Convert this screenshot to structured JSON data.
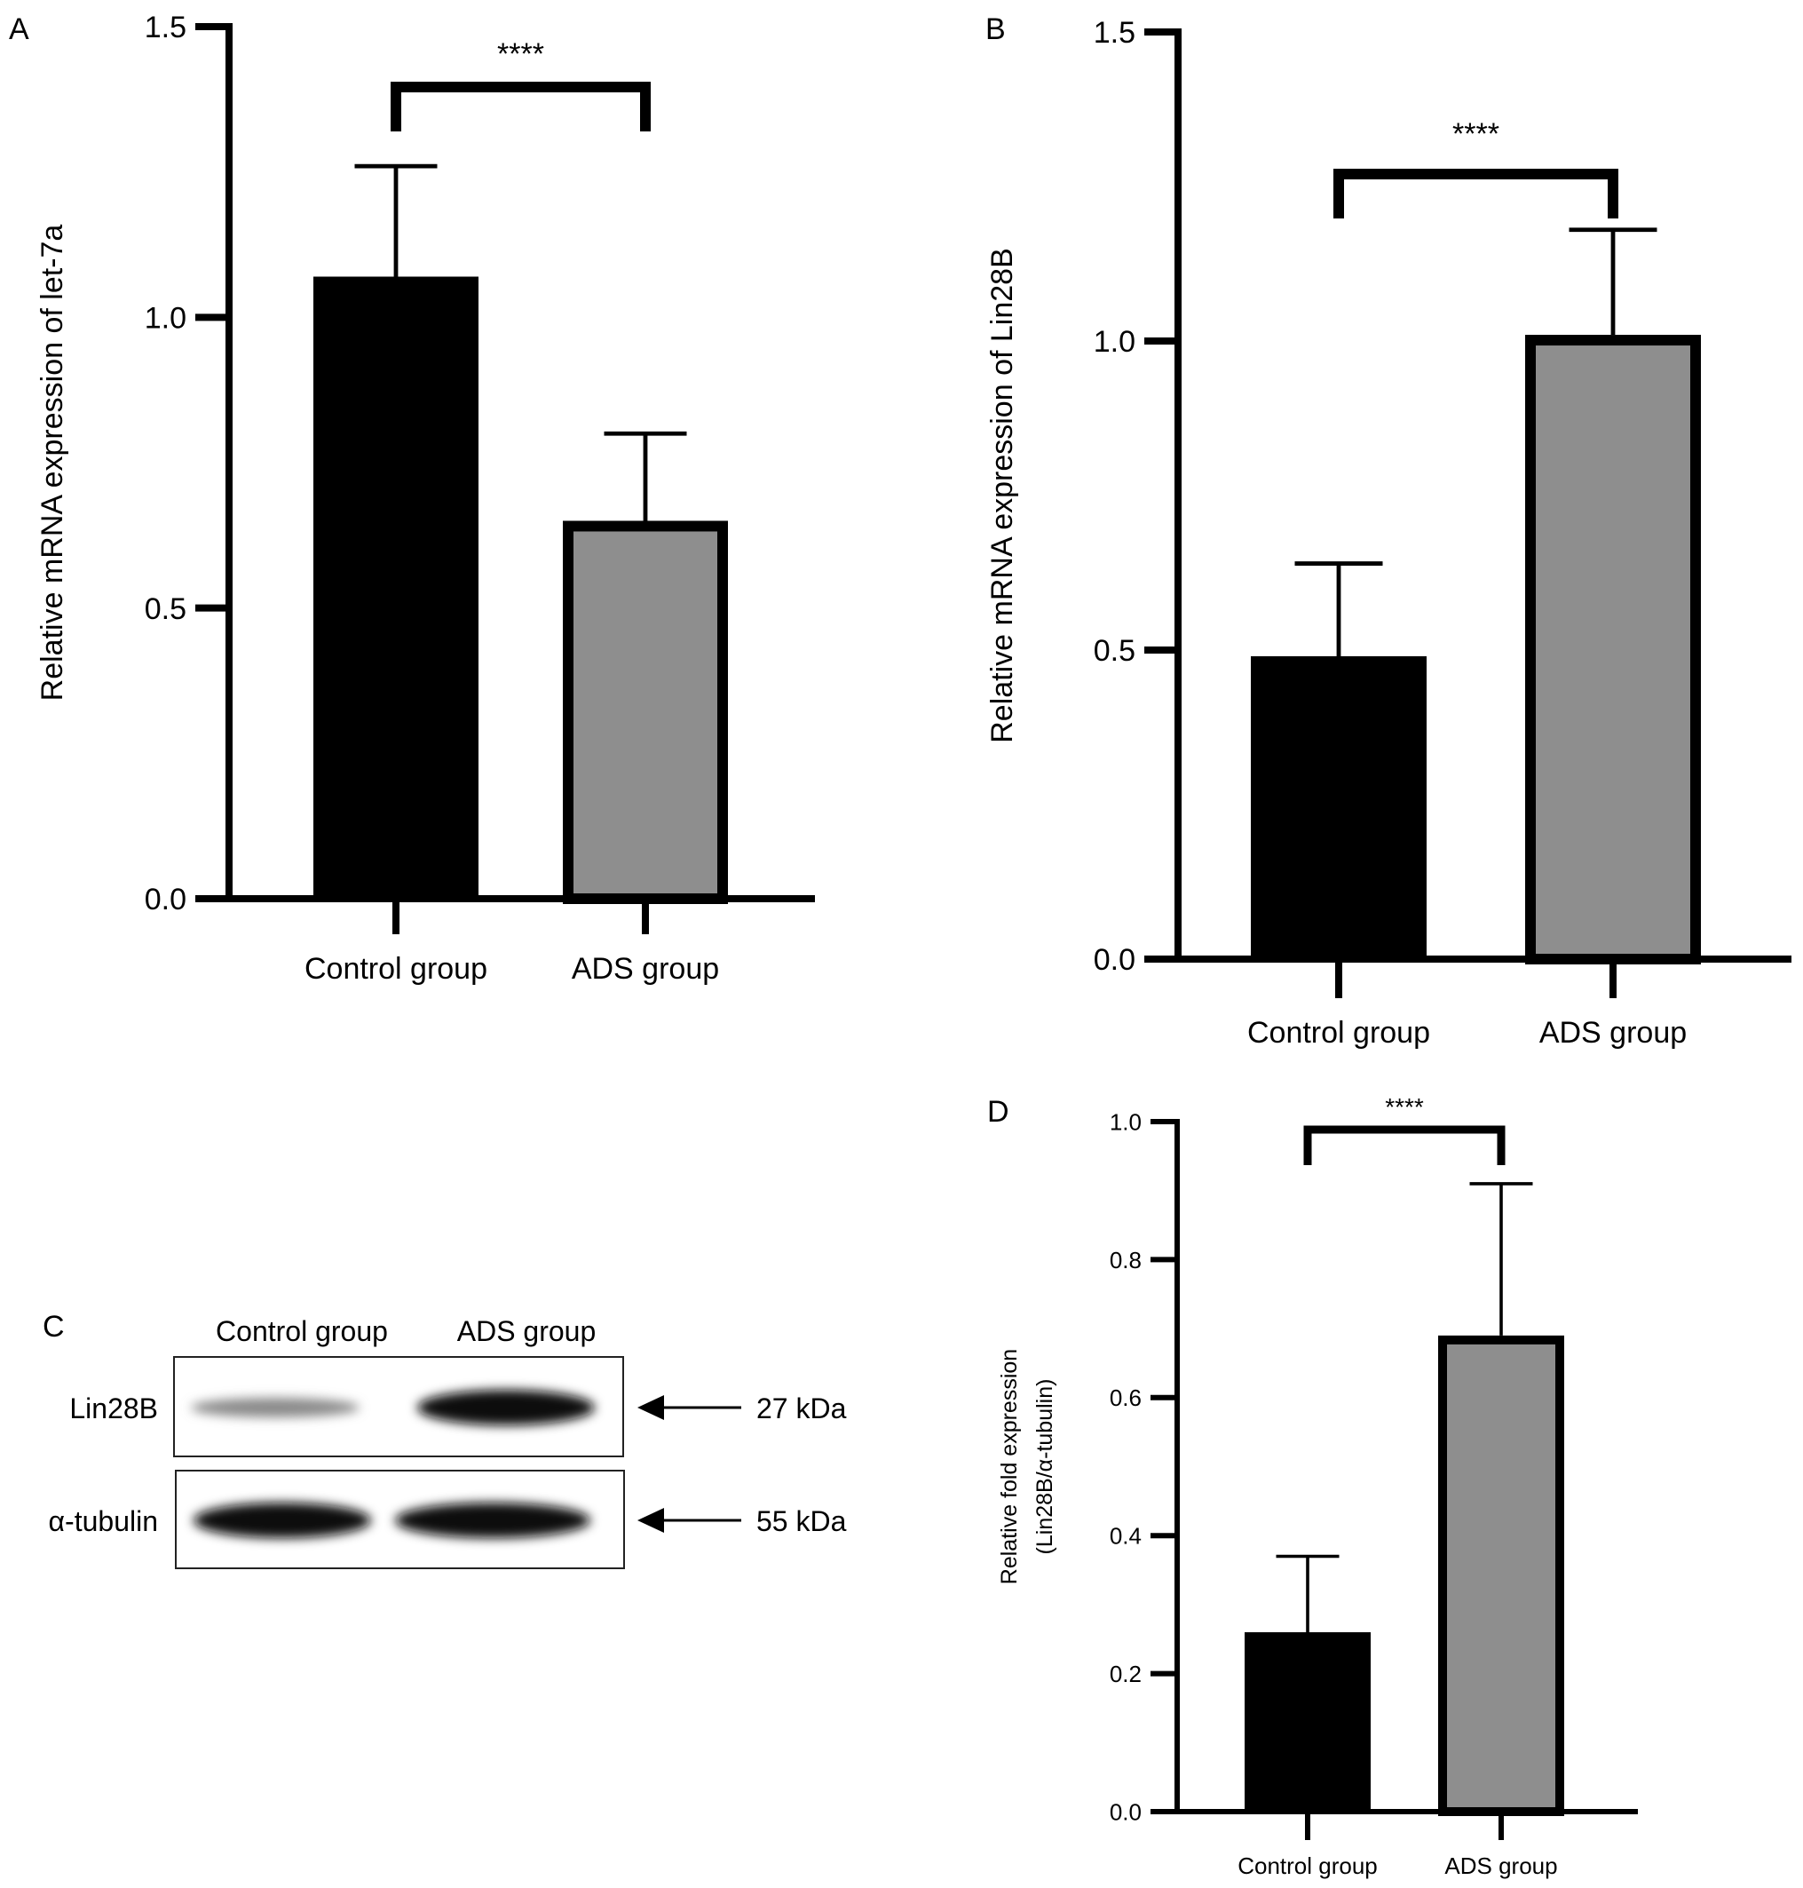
{
  "chart_data": [
    {
      "panel": "A",
      "type": "bar",
      "categories": [
        "Control group",
        "ADS group"
      ],
      "values": [
        1.07,
        0.65
      ],
      "errors": [
        0.19,
        0.15
      ],
      "ylabel": "Relative mRNA expression of let-7a",
      "ylim": [
        0,
        1.5
      ],
      "yticks": [
        "0.0",
        "0.5",
        "1.0",
        "1.5"
      ],
      "significance": "****",
      "colors": [
        "#000000",
        "#8e8e8e"
      ]
    },
    {
      "panel": "B",
      "type": "bar",
      "categories": [
        "Control group",
        "ADS group"
      ],
      "values": [
        0.49,
        1.01
      ],
      "errors": [
        0.15,
        0.17
      ],
      "ylabel": "Relative mRNA expression of  Lin28B",
      "ylim": [
        0,
        1.5
      ],
      "yticks": [
        "0.0",
        "0.5",
        "1.0",
        "1.5"
      ],
      "significance": "****",
      "colors": [
        "#000000",
        "#8e8e8e"
      ]
    },
    {
      "panel": "D",
      "type": "bar",
      "categories": [
        "Control group",
        "ADS group"
      ],
      "values": [
        0.26,
        0.69
      ],
      "errors": [
        0.11,
        0.22
      ],
      "ylabel": "Relative fold expression",
      "ylabel2": "(Lin28B/α-tubulin)",
      "ylim": [
        0,
        1.0
      ],
      "yticks": [
        "0.0",
        "0.2",
        "0.4",
        "0.6",
        "0.8",
        "1.0"
      ],
      "significance": "****",
      "colors": [
        "#000000",
        "#8e8e8e"
      ]
    }
  ],
  "blot": {
    "panel": "C",
    "columns": [
      "Control group",
      "ADS group"
    ],
    "rows": [
      {
        "label": "Lin28B",
        "size": "27 kDa"
      },
      {
        "label": "α-tubulin",
        "size": "55 kDa"
      }
    ]
  }
}
